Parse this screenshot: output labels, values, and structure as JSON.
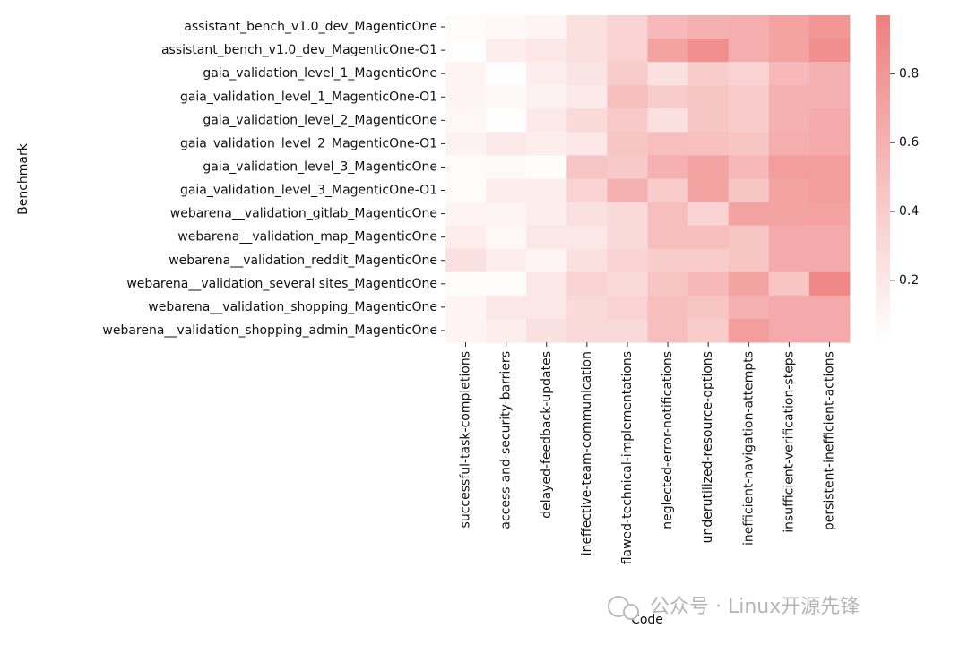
{
  "chart_data": {
    "type": "heatmap",
    "x_label": "Code",
    "y_label": "Benchmark",
    "x_categories": [
      "successful-task-completions",
      "access-and-security-barriers",
      "delayed-feedback-updates",
      "ineffective-team-communication",
      "flawed-technical-implementations",
      "neglected-error-notifications",
      "underutilized-resource-options",
      "inefficient-navigation-attempts",
      "insufficient-verification-steps",
      "persistent-inefficient-actions"
    ],
    "y_categories": [
      "assistant_bench_v1.0_dev_MagenticOne",
      "assistant_bench_v1.0_dev_MagenticOne-O1",
      "gaia_validation_level_1_MagenticOne",
      "gaia_validation_level_1_MagenticOne-O1",
      "gaia_validation_level_2_MagenticOne",
      "gaia_validation_level_2_MagenticOne-O1",
      "gaia_validation_level_3_MagenticOne",
      "gaia_validation_level_3_MagenticOne-O1",
      "webarena__validation_gitlab_MagenticOne",
      "webarena__validation_map_MagenticOne",
      "webarena__validation_reddit_MagenticOne",
      "webarena__validation_several sites_MagenticOne",
      "webarena__validation_shopping_MagenticOne",
      "webarena__validation_shopping_admin_MagenticOne"
    ],
    "values": [
      [
        0.05,
        0.07,
        0.1,
        0.25,
        0.35,
        0.55,
        0.6,
        0.62,
        0.7,
        0.8
      ],
      [
        0.03,
        0.15,
        0.2,
        0.25,
        0.35,
        0.7,
        0.85,
        0.62,
        0.7,
        0.85
      ],
      [
        0.1,
        0.03,
        0.15,
        0.22,
        0.4,
        0.25,
        0.4,
        0.35,
        0.55,
        0.6
      ],
      [
        0.1,
        0.07,
        0.12,
        0.18,
        0.5,
        0.4,
        0.45,
        0.4,
        0.6,
        0.6
      ],
      [
        0.08,
        0.03,
        0.18,
        0.3,
        0.42,
        0.25,
        0.45,
        0.4,
        0.6,
        0.65
      ],
      [
        0.12,
        0.18,
        0.15,
        0.2,
        0.45,
        0.5,
        0.48,
        0.45,
        0.62,
        0.65
      ],
      [
        0.05,
        0.06,
        0.04,
        0.45,
        0.42,
        0.6,
        0.7,
        0.55,
        0.75,
        0.75
      ],
      [
        0.05,
        0.15,
        0.15,
        0.35,
        0.6,
        0.4,
        0.7,
        0.45,
        0.7,
        0.75
      ],
      [
        0.1,
        0.1,
        0.15,
        0.25,
        0.3,
        0.5,
        0.35,
        0.7,
        0.7,
        0.72
      ],
      [
        0.15,
        0.08,
        0.2,
        0.2,
        0.3,
        0.5,
        0.5,
        0.45,
        0.65,
        0.65
      ],
      [
        0.25,
        0.15,
        0.1,
        0.25,
        0.35,
        0.4,
        0.4,
        0.45,
        0.65,
        0.65
      ],
      [
        0.04,
        0.05,
        0.2,
        0.35,
        0.3,
        0.45,
        0.55,
        0.7,
        0.45,
        0.9
      ],
      [
        0.1,
        0.2,
        0.2,
        0.3,
        0.35,
        0.5,
        0.45,
        0.6,
        0.65,
        0.65
      ],
      [
        0.1,
        0.15,
        0.25,
        0.3,
        0.3,
        0.5,
        0.4,
        0.75,
        0.65,
        0.65
      ]
    ],
    "colors": [
      "#ffffff",
      "#ef7f7f"
    ],
    "zlim": [
      0.02,
      0.97
    ],
    "zticks": [
      0.2,
      0.4,
      0.6,
      0.8
    ],
    "watermark": "公众号 · Linux开源先锋"
  }
}
